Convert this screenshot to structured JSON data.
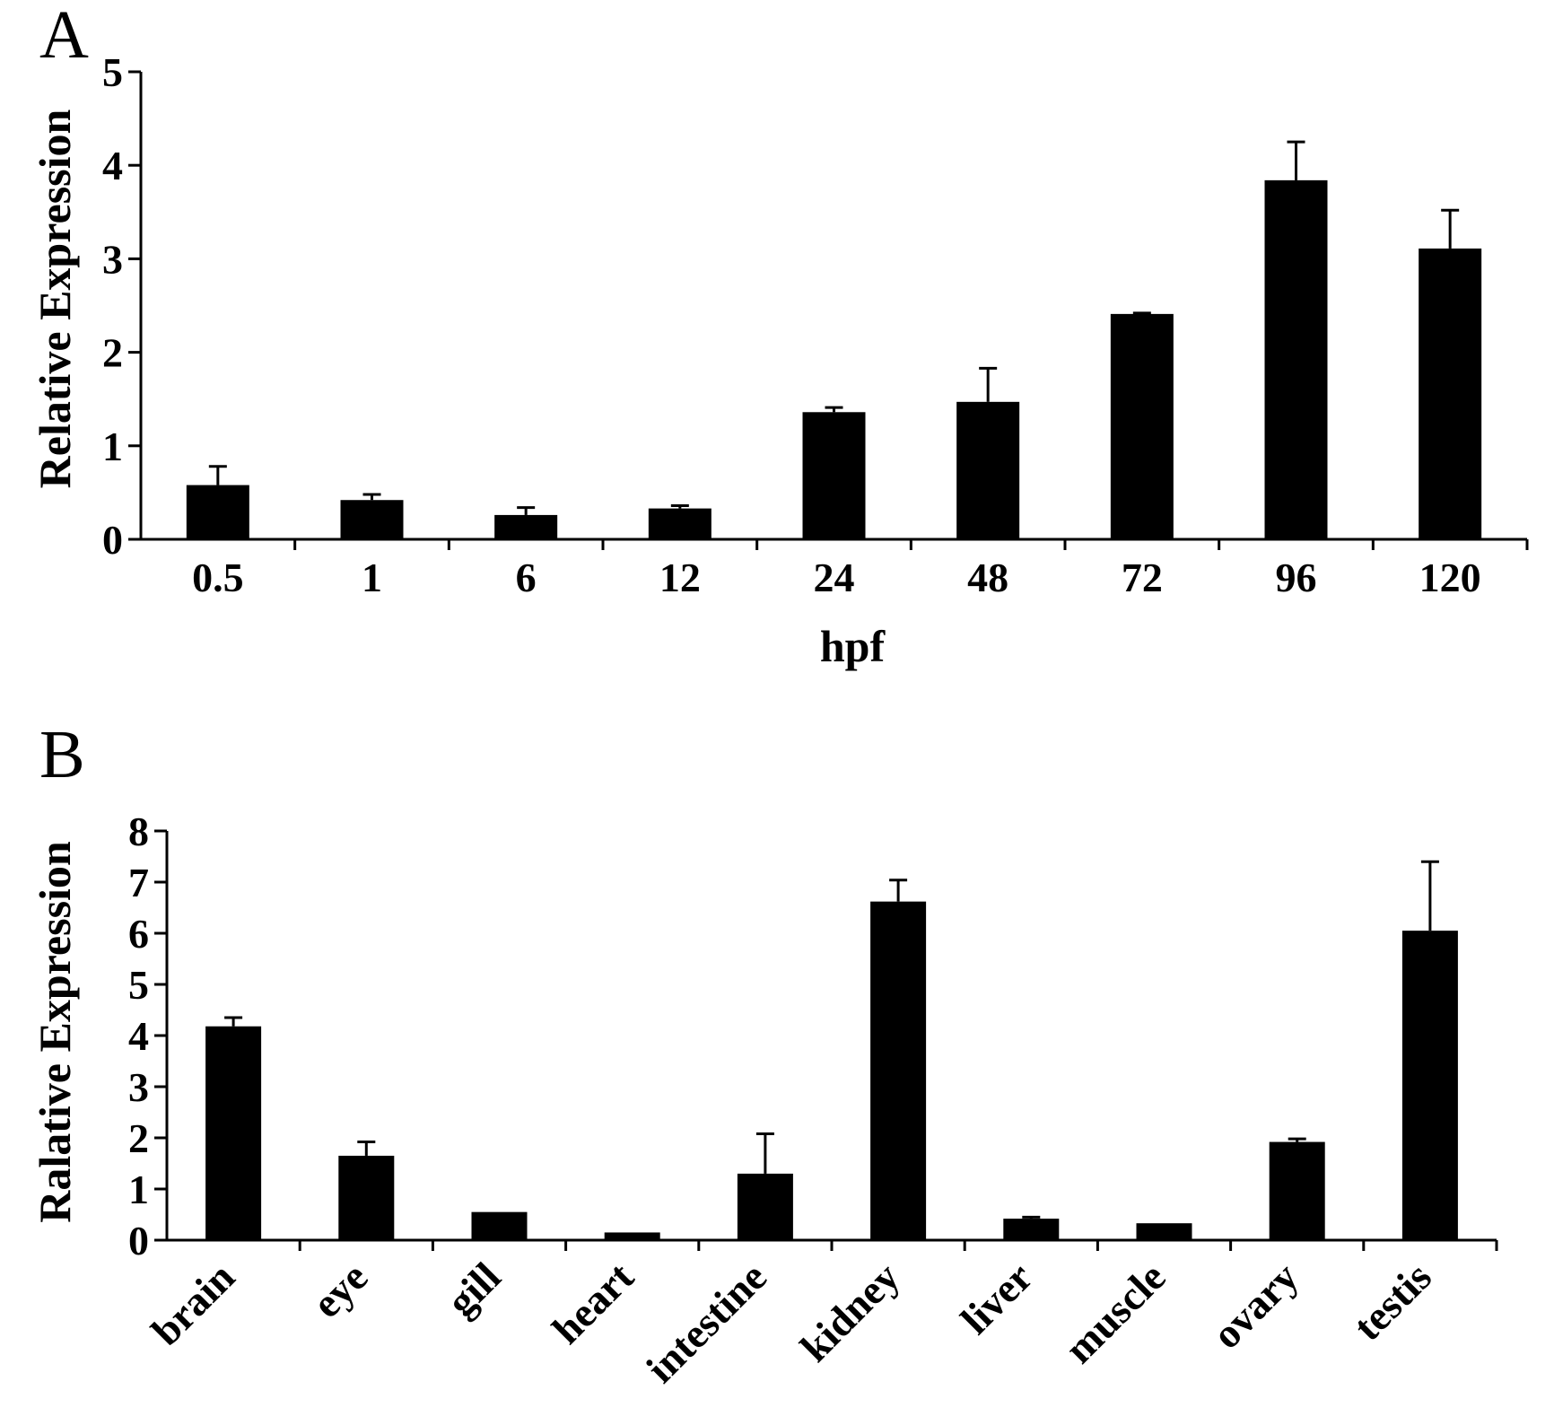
{
  "chart_data": [
    {
      "panel": "A",
      "type": "bar",
      "categories": [
        "0.5",
        "1",
        "6",
        "12",
        "24",
        "48",
        "72",
        "96",
        "120"
      ],
      "series": [
        {
          "values": [
            0.58,
            0.42,
            0.26,
            0.33,
            1.36,
            1.47,
            2.41,
            3.84,
            3.11
          ],
          "error": [
            0.2,
            0.06,
            0.08,
            0.03,
            0.05,
            0.36,
            0.01,
            0.41,
            0.41
          ]
        }
      ],
      "xlabel": "hpf",
      "ylabel": "Relative Expression",
      "ylim": [
        0,
        5
      ],
      "yticks": [
        "0",
        "1",
        "2",
        "3",
        "4",
        "5"
      ],
      "grid": false
    },
    {
      "panel": "B",
      "type": "bar",
      "categories": [
        "brain",
        "eye",
        "gill",
        "heart",
        "intestine",
        "kidney",
        "liver",
        "muscle",
        "ovary",
        "testis"
      ],
      "series": [
        {
          "values": [
            4.18,
            1.65,
            0.55,
            0.15,
            1.3,
            6.62,
            0.42,
            0.33,
            1.92,
            6.05
          ],
          "error": [
            0.17,
            0.27,
            0.0,
            0.0,
            0.78,
            0.42,
            0.03,
            0.0,
            0.06,
            1.35
          ]
        }
      ],
      "xlabel": "",
      "ylabel": "Ralative Expression",
      "ylim": [
        0,
        8
      ],
      "yticks": [
        "0",
        "1",
        "2",
        "3",
        "4",
        "5",
        "6",
        "7",
        "8"
      ],
      "grid": false
    }
  ]
}
